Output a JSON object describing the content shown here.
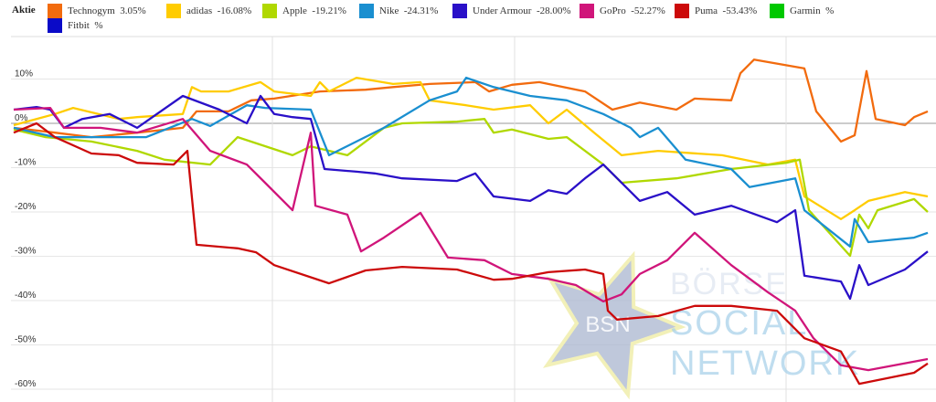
{
  "chart_data": {
    "type": "line",
    "title": "",
    "legend_title": "Aktie",
    "legend_placement": "top",
    "xlabel": "",
    "ylabel": "",
    "xlim": [
      0,
      102
    ],
    "ylim": [
      -62.9,
      19.6
    ],
    "yticks": [
      10,
      0,
      -10,
      -20,
      -30,
      -40,
      -50,
      -60
    ],
    "ytick_labels": [
      "10%",
      "0%",
      "-10%",
      "-20%",
      "-30%",
      "-40%",
      "-50%",
      "-60%"
    ],
    "grid": true,
    "series": [
      {
        "name": "Technogym",
        "change": "3.05%",
        "color": "#f26b0e",
        "points": [
          [
            1.5,
            -1
          ],
          [
            6,
            -2.1
          ],
          [
            10,
            -3.1
          ],
          [
            15,
            -2.1
          ],
          [
            20,
            -1
          ],
          [
            21.5,
            2.7
          ],
          [
            25,
            2.7
          ],
          [
            27.5,
            5.2
          ],
          [
            30,
            5.6
          ],
          [
            35,
            7.2
          ],
          [
            40,
            7.6
          ],
          [
            43,
            8.2
          ],
          [
            47,
            8.9
          ],
          [
            52,
            9.3
          ],
          [
            53.5,
            7.2
          ],
          [
            56,
            8.7
          ],
          [
            59,
            9.3
          ],
          [
            64,
            7.2
          ],
          [
            67,
            3.1
          ],
          [
            70,
            4.7
          ],
          [
            74,
            3.1
          ],
          [
            76,
            5.6
          ],
          [
            80,
            5.2
          ],
          [
            81,
            11.3
          ],
          [
            82.5,
            14.4
          ],
          [
            88,
            12.4
          ],
          [
            89.3,
            2.7
          ],
          [
            92,
            -4.1
          ],
          [
            93.5,
            -2.7
          ],
          [
            94.8,
            11.8
          ],
          [
            95.8,
            1
          ],
          [
            99,
            -0.4
          ],
          [
            100,
            1.4
          ],
          [
            101.5,
            2.7
          ]
        ]
      },
      {
        "name": "adidas",
        "change": "-16.08%",
        "color": "#ffcc00",
        "points": [
          [
            1.5,
            -0.4
          ],
          [
            6,
            2.1
          ],
          [
            8,
            3.5
          ],
          [
            13,
            1
          ],
          [
            15,
            1.4
          ],
          [
            20,
            2.1
          ],
          [
            21,
            8.2
          ],
          [
            22,
            7.2
          ],
          [
            25,
            7.2
          ],
          [
            28.5,
            9.3
          ],
          [
            30,
            7.2
          ],
          [
            34,
            6.2
          ],
          [
            35,
            9.3
          ],
          [
            36,
            7.2
          ],
          [
            39,
            10.3
          ],
          [
            43,
            8.9
          ],
          [
            46,
            9.3
          ],
          [
            47,
            5.2
          ],
          [
            51,
            4.1
          ],
          [
            54,
            3.1
          ],
          [
            58,
            4.1
          ],
          [
            60,
            0
          ],
          [
            62,
            3.1
          ],
          [
            65,
            -2.1
          ],
          [
            68,
            -7.2
          ],
          [
            72,
            -6.2
          ],
          [
            79,
            -7.2
          ],
          [
            84,
            -9.3
          ],
          [
            87,
            -8.2
          ],
          [
            88,
            -16.5
          ],
          [
            92,
            -21.6
          ],
          [
            93.5,
            -19.6
          ],
          [
            95,
            -17.5
          ],
          [
            99,
            -15.5
          ],
          [
            101.5,
            -16.5
          ]
        ]
      },
      {
        "name": "Apple",
        "change": "-19.21%",
        "color": "#b0d800",
        "points": [
          [
            1.5,
            -1.4
          ],
          [
            5,
            -3.1
          ],
          [
            10,
            -4.1
          ],
          [
            15,
            -6.2
          ],
          [
            18,
            -8.2
          ],
          [
            23,
            -9.3
          ],
          [
            26,
            -3.1
          ],
          [
            32,
            -7.2
          ],
          [
            34,
            -5.2
          ],
          [
            38,
            -7.2
          ],
          [
            42,
            -1
          ],
          [
            44,
            0
          ],
          [
            50,
            0.4
          ],
          [
            53,
            1
          ],
          [
            54,
            -2.1
          ],
          [
            56,
            -1.4
          ],
          [
            60,
            -3.5
          ],
          [
            62,
            -3.1
          ],
          [
            66,
            -9.3
          ],
          [
            68,
            -13.4
          ],
          [
            74,
            -12.4
          ],
          [
            80,
            -10.3
          ],
          [
            86,
            -8.9
          ],
          [
            87.5,
            -8.2
          ],
          [
            88.5,
            -19.6
          ],
          [
            93,
            -29.9
          ],
          [
            94,
            -20.6
          ],
          [
            95,
            -23.7
          ],
          [
            96,
            -19.6
          ],
          [
            100,
            -17.1
          ],
          [
            101.5,
            -20
          ]
        ]
      },
      {
        "name": "Nike",
        "change": "-24.31%",
        "color": "#1a8fd0",
        "points": [
          [
            1.5,
            -1
          ],
          [
            6,
            -3.1
          ],
          [
            12,
            -3.1
          ],
          [
            16,
            -3.1
          ],
          [
            21,
            1
          ],
          [
            23,
            -0.6
          ],
          [
            27,
            4.1
          ],
          [
            29,
            3.5
          ],
          [
            34,
            3.1
          ],
          [
            36,
            -7.2
          ],
          [
            39,
            -4.1
          ],
          [
            42,
            -1
          ],
          [
            47,
            5.2
          ],
          [
            50,
            7.2
          ],
          [
            51,
            10.3
          ],
          [
            54,
            8.2
          ],
          [
            58,
            6.2
          ],
          [
            62,
            5.2
          ],
          [
            66,
            2.1
          ],
          [
            69,
            -1
          ],
          [
            70,
            -3.1
          ],
          [
            72,
            -1
          ],
          [
            75,
            -8.2
          ],
          [
            80,
            -10.3
          ],
          [
            82,
            -14.4
          ],
          [
            87,
            -12.4
          ],
          [
            88,
            -19.6
          ],
          [
            93,
            -27.8
          ],
          [
            93.5,
            -21.6
          ],
          [
            95,
            -26.8
          ],
          [
            100,
            -25.8
          ],
          [
            101.5,
            -24.7
          ]
        ]
      },
      {
        "name": "Under Armour",
        "change": "-28.00%",
        "color": "#2a10c8",
        "points": [
          [
            1.5,
            3.1
          ],
          [
            4,
            3.7
          ],
          [
            5.5,
            3.1
          ],
          [
            7,
            -1
          ],
          [
            9,
            1
          ],
          [
            12,
            2.1
          ],
          [
            15,
            -1
          ],
          [
            20,
            6.2
          ],
          [
            24,
            3.1
          ],
          [
            27,
            0
          ],
          [
            28.5,
            6.2
          ],
          [
            30,
            2.1
          ],
          [
            32,
            1.4
          ],
          [
            34,
            1
          ],
          [
            35.5,
            -10.3
          ],
          [
            39,
            -10.9
          ],
          [
            41,
            -11.3
          ],
          [
            44,
            -12.4
          ],
          [
            50,
            -13
          ],
          [
            52,
            -11.3
          ],
          [
            54,
            -16.5
          ],
          [
            58,
            -17.5
          ],
          [
            60,
            -15.1
          ],
          [
            62,
            -15.9
          ],
          [
            64,
            -12.4
          ],
          [
            66,
            -9.3
          ],
          [
            70,
            -17.5
          ],
          [
            73,
            -15.5
          ],
          [
            76,
            -20.6
          ],
          [
            80,
            -18.6
          ],
          [
            85,
            -22.3
          ],
          [
            87,
            -19.6
          ],
          [
            88,
            -34.4
          ],
          [
            92,
            -35.7
          ],
          [
            93,
            -39.6
          ],
          [
            94,
            -32
          ],
          [
            95,
            -36.5
          ],
          [
            99,
            -33
          ],
          [
            101.5,
            -28.9
          ]
        ]
      },
      {
        "name": "GoPro",
        "change": "-52.27%",
        "color": "#d0157a",
        "points": [
          [
            1.5,
            3.1
          ],
          [
            5.5,
            3.5
          ],
          [
            7,
            -1
          ],
          [
            11,
            -1
          ],
          [
            15,
            -2.1
          ],
          [
            20,
            1
          ],
          [
            23,
            -6.2
          ],
          [
            27,
            -9.3
          ],
          [
            29,
            -13.4
          ],
          [
            32,
            -19.6
          ],
          [
            34,
            -2.1
          ],
          [
            34.5,
            -18.6
          ],
          [
            38,
            -20.6
          ],
          [
            39.5,
            -28.9
          ],
          [
            42,
            -25.8
          ],
          [
            46,
            -20.2
          ],
          [
            49,
            -30.3
          ],
          [
            53,
            -30.9
          ],
          [
            56,
            -34
          ],
          [
            60,
            -35.1
          ],
          [
            63,
            -36.5
          ],
          [
            66,
            -40.2
          ],
          [
            68,
            -38.6
          ],
          [
            70,
            -34
          ],
          [
            73,
            -30.9
          ],
          [
            76,
            -24.7
          ],
          [
            80,
            -32
          ],
          [
            84,
            -38.1
          ],
          [
            87,
            -42.3
          ],
          [
            89,
            -48.5
          ],
          [
            92,
            -54.6
          ],
          [
            95,
            -55.7
          ],
          [
            101.5,
            -53.2
          ]
        ]
      },
      {
        "name": "Puma",
        "change": "-53.43%",
        "color": "#cc0a0a",
        "points": [
          [
            1.5,
            -2.1
          ],
          [
            4,
            0
          ],
          [
            6,
            -3.1
          ],
          [
            10,
            -6.8
          ],
          [
            13,
            -7.2
          ],
          [
            15,
            -8.9
          ],
          [
            19,
            -9.3
          ],
          [
            20.5,
            -6.2
          ],
          [
            21.5,
            -27.4
          ],
          [
            26,
            -28.2
          ],
          [
            28,
            -29.1
          ],
          [
            30,
            -32
          ],
          [
            36,
            -36.1
          ],
          [
            40,
            -33.2
          ],
          [
            44,
            -32.4
          ],
          [
            50,
            -33
          ],
          [
            54,
            -35.3
          ],
          [
            56,
            -35.1
          ],
          [
            60,
            -33.6
          ],
          [
            64,
            -33
          ],
          [
            66,
            -34
          ],
          [
            66.5,
            -42.3
          ],
          [
            67.5,
            -44.3
          ],
          [
            72,
            -43.5
          ],
          [
            76,
            -41.2
          ],
          [
            80,
            -41.2
          ],
          [
            85,
            -42.3
          ],
          [
            88,
            -48.5
          ],
          [
            92,
            -51.5
          ],
          [
            94,
            -58.8
          ],
          [
            100,
            -56.3
          ],
          [
            101.5,
            -54.2
          ]
        ]
      },
      {
        "name": "Garmin",
        "change": "",
        "color": "#00c800",
        "points": []
      },
      {
        "name": "Fitbit",
        "change": "",
        "color": "#0a0ac8",
        "points": []
      }
    ],
    "x_gridlines": [
      29.8,
      56.3,
      86
    ],
    "watermark": {
      "badge": "BSN",
      "text": [
        "BÖRSE",
        "SOCIAL",
        "NETWORK"
      ]
    }
  }
}
